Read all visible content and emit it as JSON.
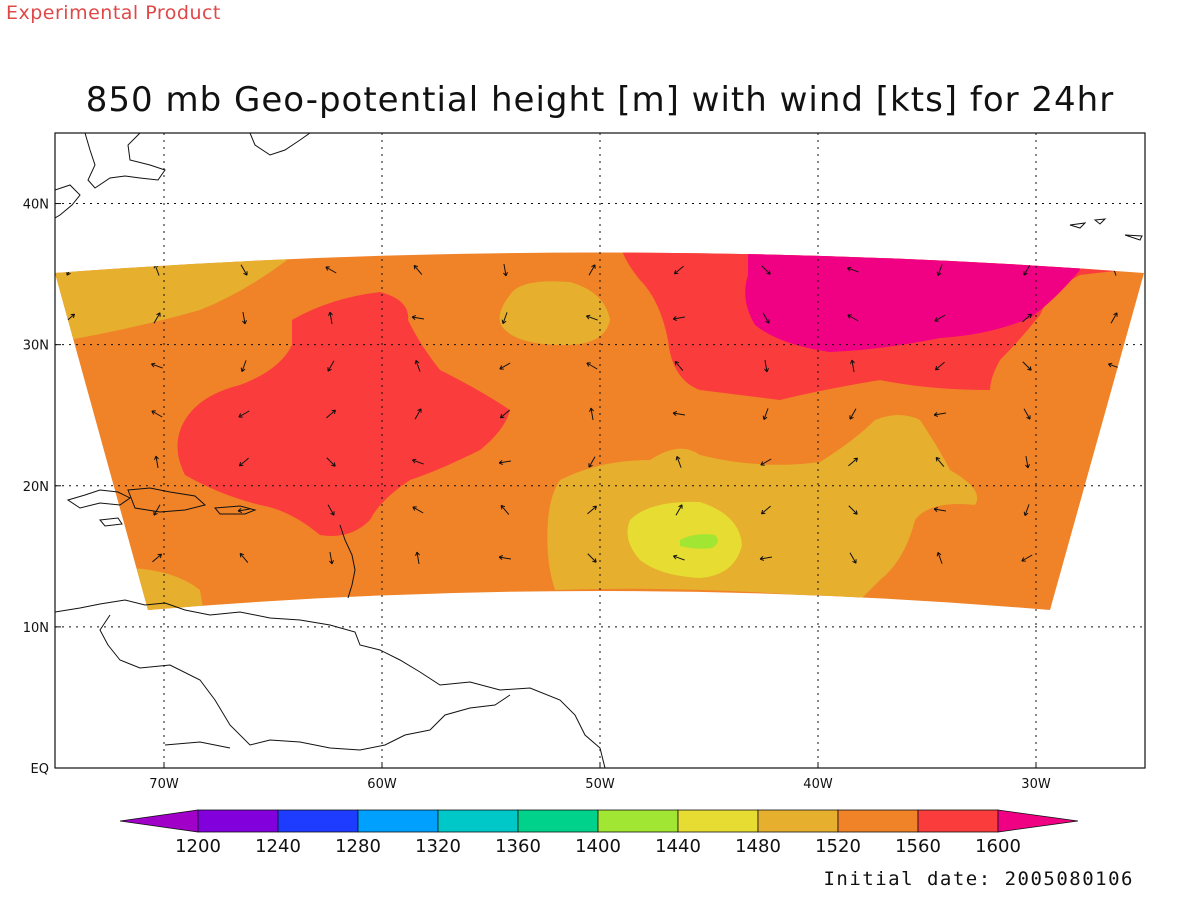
{
  "header": {
    "product_label": "Experimental Product",
    "title": "850 mb Geo-potential height [m] with wind [kts] for 24hr"
  },
  "map": {
    "region": "Tropical Atlantic / Caribbean",
    "lon_range": [
      -75,
      -25
    ],
    "lat_range": [
      0,
      45
    ],
    "lon_labels": [
      {
        "lon": -70,
        "label": "70W"
      },
      {
        "lon": -60,
        "label": "60W"
      },
      {
        "lon": -50,
        "label": "50W"
      },
      {
        "lon": -40,
        "label": "40W"
      },
      {
        "lon": -30,
        "label": "30W"
      }
    ],
    "lat_labels": [
      {
        "lat": 0,
        "label": "EQ"
      },
      {
        "lat": 10,
        "label": "10N"
      },
      {
        "lat": 20,
        "label": "20N"
      },
      {
        "lat": 30,
        "label": "30N"
      },
      {
        "lat": 40,
        "label": "40N"
      }
    ],
    "grid": "dotted"
  },
  "colorbar": {
    "levels": [
      "1200",
      "1240",
      "1280",
      "1320",
      "1360",
      "1400",
      "1440",
      "1480",
      "1520",
      "1560",
      "1600"
    ],
    "colors": [
      "#a000c8",
      "#8200dc",
      "#1e3cff",
      "#00a0ff",
      "#00c8c8",
      "#00d28c",
      "#a0e632",
      "#e6dc32",
      "#e6af2d",
      "#f08228",
      "#fa3c3c",
      "#f00082"
    ]
  },
  "footer": {
    "initial_date_label": "Initial date: 2005080106"
  }
}
